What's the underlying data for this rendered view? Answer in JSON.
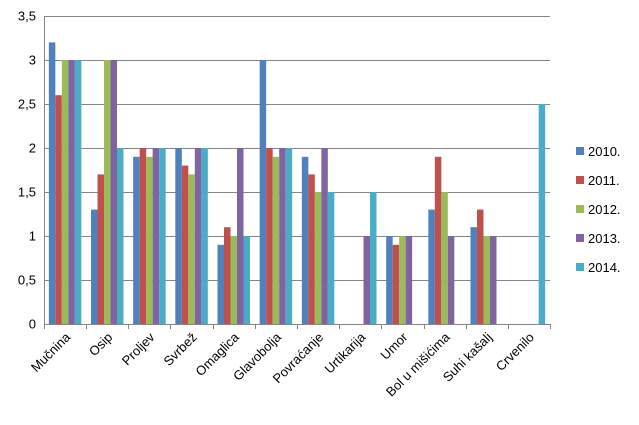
{
  "chart_data": {
    "type": "bar",
    "title": "",
    "xlabel": "",
    "ylabel": "",
    "ylim": [
      0,
      3.5
    ],
    "y_ticks": [
      "0",
      "0,5",
      "1",
      "1,5",
      "2",
      "2,5",
      "3",
      "3,5"
    ],
    "grid": true,
    "legend_position": "right",
    "categories": [
      "Mučnina",
      "Osip",
      "Proljev",
      "Svrbež",
      "Omaglica",
      "Glavobolja",
      "Povraćanje",
      "Urtikarija",
      "Umor",
      "Bol u mišićima",
      "Suhi kašalj",
      "Crvenilo"
    ],
    "series": [
      {
        "name": "2010.",
        "color": "#4F81BD",
        "values": [
          3.2,
          1.3,
          1.9,
          2.0,
          0.9,
          3.0,
          1.9,
          0,
          1.0,
          1.3,
          1.1,
          0
        ]
      },
      {
        "name": "2011.",
        "color": "#C0504D",
        "values": [
          2.6,
          1.7,
          2.0,
          1.8,
          1.1,
          2.0,
          1.7,
          0,
          0.9,
          1.9,
          1.3,
          0
        ]
      },
      {
        "name": "2012.",
        "color": "#9BBB59",
        "values": [
          3.0,
          3.0,
          1.9,
          1.7,
          1.0,
          1.9,
          1.5,
          0,
          1.0,
          1.5,
          1.0,
          0
        ]
      },
      {
        "name": "2013.",
        "color": "#8064A2",
        "values": [
          3.0,
          3.0,
          2.0,
          2.0,
          2.0,
          2.0,
          2.0,
          1.0,
          1.0,
          1.0,
          1.0,
          0
        ]
      },
      {
        "name": "2014.",
        "color": "#4BACC6",
        "values": [
          3.0,
          2.0,
          2.0,
          2.0,
          1.0,
          2.0,
          1.5,
          1.5,
          0,
          0,
          0,
          2.5
        ]
      }
    ]
  }
}
